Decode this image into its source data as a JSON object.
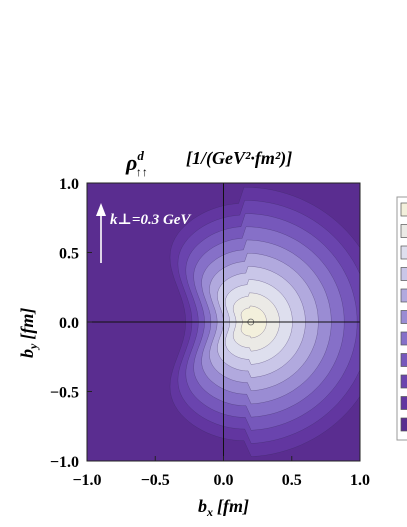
{
  "chart_data": {
    "type": "heatmap",
    "title_text": "[1/(GeV²·fm²)]",
    "title_symbol": {
      "base": "ρ",
      "superscript": "d",
      "subscript": "↑↑"
    },
    "xlabel": {
      "base": "b",
      "subscript": "x",
      "unit": "[fm]"
    },
    "ylabel": {
      "base": "b",
      "subscript": "y",
      "unit": "[fm]"
    },
    "xlim": [
      -1.0,
      1.0
    ],
    "ylim": [
      -1.0,
      1.0
    ],
    "xticks": [
      "−1.0",
      "−0.5",
      "0.0",
      "0.5",
      "1.0"
    ],
    "yticks": [
      "1.0",
      "0.5",
      "0.0",
      "−0.5",
      "−1.0"
    ],
    "xtick_values": [
      -1.0,
      -0.5,
      0.0,
      0.5,
      1.0
    ],
    "ytick_values": [
      1.0,
      0.5,
      0.0,
      -0.5,
      -1.0
    ],
    "annotation": {
      "text": "k⊥=0.3 GeV",
      "arrow": "up"
    },
    "peak": {
      "x": 0.2,
      "y": 0.0
    },
    "contour_levels": 10,
    "colors": [
      "#5a2d90",
      "#6236a0",
      "#6a44ae",
      "#7658bb",
      "#8670c8",
      "#9a8cd3",
      "#b1a9de",
      "#c9c6e8",
      "#dedfee",
      "#ebeae6",
      "#f3f0dc"
    ],
    "grid": false,
    "legend": "right (color bar, partially visible)"
  }
}
